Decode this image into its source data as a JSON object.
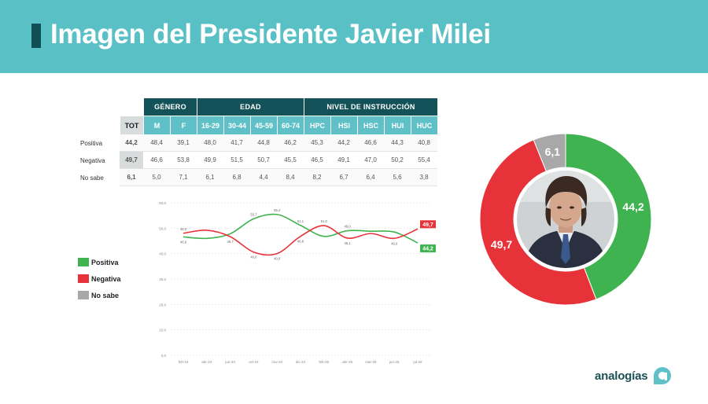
{
  "header": {
    "title": "Imagen del Presidente Javier Milei"
  },
  "table": {
    "group_headers": [
      "GÉNERO",
      "EDAD",
      "NIVEL DE INSTRUCCIÓN"
    ],
    "columns": [
      "TOT",
      "M",
      "F",
      "16-29",
      "30-44",
      "45-59",
      "60-74",
      "HPC",
      "HSI",
      "HSC",
      "HUI",
      "HUC"
    ],
    "rows": [
      {
        "label": "Positiva",
        "values": [
          "44,2",
          "48,4",
          "39,1",
          "48,0",
          "41,7",
          "44,8",
          "46,2",
          "45,3",
          "44,2",
          "46,6",
          "44,3",
          "40,8"
        ]
      },
      {
        "label": "Negativa",
        "values": [
          "49,7",
          "46,6",
          "53,8",
          "49,9",
          "51,5",
          "50,7",
          "45,5",
          "46,5",
          "49,1",
          "47,0",
          "50,2",
          "55,4"
        ]
      },
      {
        "label": "No sabe",
        "values": [
          "6,1",
          "5,0",
          "7,1",
          "6,1",
          "6,8",
          "4,4",
          "8,4",
          "8,2",
          "6,7",
          "6,4",
          "5,6",
          "3,8"
        ]
      }
    ]
  },
  "legend": [
    {
      "label": "Positiva",
      "color": "#3fb34f"
    },
    {
      "label": "Negativa",
      "color": "#e8323a"
    },
    {
      "label": "No sabe",
      "color": "#a8a8a8"
    }
  ],
  "chart_data": [
    {
      "type": "line",
      "title": "",
      "x": [
        "feb-24",
        "abr-24",
        "jun-24",
        "oct-24",
        "nov-24",
        "dic-24",
        "feb-25",
        "abr-25",
        "mar-25",
        "jun-25",
        "jul-25"
      ],
      "series": [
        {
          "name": "Positiva",
          "color": "#3fb34f",
          "values": [
            46.6,
            46.0,
            47.8,
            53.7,
            55.4,
            51.1,
            46.8,
            49.0,
            48.8,
            48.5,
            44.2
          ]
        },
        {
          "name": "Negativa",
          "color": "#e8323a",
          "values": [
            48.0,
            49.2,
            46.7,
            40.6,
            40.0,
            46.8,
            51.0,
            46.1,
            47.9,
            46.0,
            49.7
          ]
        }
      ],
      "y_ticks": [
        "60,0",
        "50,0",
        "40,0",
        "30,0",
        "20,0",
        "10,0",
        "0,0"
      ],
      "ylim": [
        0,
        60
      ],
      "point_labels": {
        "Positiva": [
          "46,6",
          "",
          "",
          "53,7",
          "55,4",
          "51,1",
          "",
          "49,0",
          "",
          "",
          ""
        ],
        "Negativa": [
          "48,0",
          "",
          "46,7",
          "40,6",
          "40,0",
          "46,8",
          "51,0",
          "46,1",
          "",
          "46,0",
          ""
        ]
      },
      "end_labels": {
        "Negativa": "49,7",
        "Positiva": "44,2"
      }
    },
    {
      "type": "pie",
      "title": "",
      "categories": [
        "Positiva",
        "Negativa",
        "No sabe"
      ],
      "values": [
        44.2,
        49.7,
        6.1
      ],
      "labels": [
        "44,2",
        "49,7",
        "6,1"
      ],
      "colors": [
        "#3fb34f",
        "#e8323a",
        "#a8a8a8"
      ]
    }
  ],
  "logo": {
    "text": "analogías"
  }
}
